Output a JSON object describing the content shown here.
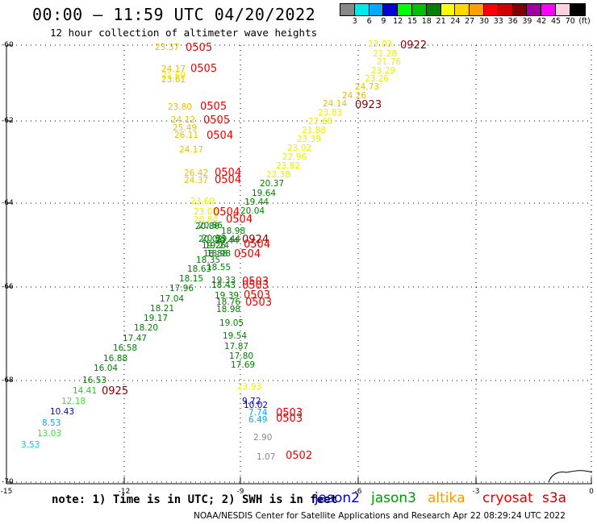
{
  "header": {
    "title": "00:00 — 11:59 UTC 04/20/2022",
    "subtitle": "12 hour collection of altimeter wave heights"
  },
  "colorbar": {
    "labels": [
      "3",
      "6",
      "9",
      "12",
      "15",
      "18",
      "21",
      "24",
      "27",
      "30",
      "33",
      "36",
      "39",
      "42",
      "45",
      "70",
      "(ft)"
    ],
    "colors": [
      "#888888",
      "#00e8e8",
      "#00a8ff",
      "#0000d8",
      "#00ff00",
      "#00c000",
      "#008000",
      "#ffff00",
      "#ffd800",
      "#ffa000",
      "#ff0000",
      "#d00000",
      "#800000",
      "#a000a0",
      "#ff00ff",
      "#ffd0e0",
      "#000000"
    ]
  },
  "axes": {
    "y_ticks": [
      "-60",
      "-62",
      "-64",
      "-66",
      "-68",
      "-70"
    ],
    "x_ticks": [
      "-15",
      "-12",
      "-9",
      "-6",
      "-3",
      "0"
    ]
  },
  "wave_heights": [
    {
      "v": "23.03",
      "c": "#eeee00"
    },
    {
      "v": "21.28",
      "c": "#eeee00"
    },
    {
      "v": "21.76",
      "c": "#eeee00"
    },
    {
      "v": "23.29",
      "c": "#eeee00"
    },
    {
      "v": "23.26",
      "c": "#eeee00"
    },
    {
      "v": "24.73",
      "c": "#e8c000"
    },
    {
      "v": "24.26",
      "c": "#e8c000"
    },
    {
      "v": "24.14",
      "c": "#e8c000"
    },
    {
      "v": "23.83",
      "c": "#eeee00"
    },
    {
      "v": "22.60",
      "c": "#eeee00"
    },
    {
      "v": "21.88",
      "c": "#eeee00"
    },
    {
      "v": "23.39",
      "c": "#eeee00"
    },
    {
      "v": "23.02",
      "c": "#eeee00"
    },
    {
      "v": "22.96",
      "c": "#eeee00"
    },
    {
      "v": "23.82",
      "c": "#eeee00"
    },
    {
      "v": "22.38",
      "c": "#eeee00"
    },
    {
      "v": "20.37",
      "c": "#008000"
    },
    {
      "v": "19.64",
      "c": "#008000"
    },
    {
      "v": "19.44",
      "c": "#008000"
    },
    {
      "v": "20.04",
      "c": "#008000"
    },
    {
      "v": "18.98",
      "c": "#008000"
    },
    {
      "v": "20.86",
      "c": "#008000"
    },
    {
      "v": "20.02",
      "c": "#008000"
    },
    {
      "v": "19.44",
      "c": "#008000"
    },
    {
      "v": "19.24",
      "c": "#008000"
    },
    {
      "v": "18.98",
      "c": "#008000"
    },
    {
      "v": "18.35",
      "c": "#008000"
    },
    {
      "v": "18.55",
      "c": "#008000"
    },
    {
      "v": "18.63",
      "c": "#008000"
    },
    {
      "v": "18.15",
      "c": "#008000"
    },
    {
      "v": "17.96",
      "c": "#008000"
    },
    {
      "v": "17.04",
      "c": "#008000"
    },
    {
      "v": "18.21",
      "c": "#008000"
    },
    {
      "v": "19.17",
      "c": "#008000"
    },
    {
      "v": "18.20",
      "c": "#008000"
    },
    {
      "v": "17.47",
      "c": "#008000"
    },
    {
      "v": "16.58",
      "c": "#008000"
    },
    {
      "v": "16.88",
      "c": "#008000"
    },
    {
      "v": "16.04",
      "c": "#008000"
    },
    {
      "v": "16.53",
      "c": "#008000"
    },
    {
      "v": "14.41",
      "c": "#22cc22"
    },
    {
      "v": "12.18",
      "c": "#44dd44"
    },
    {
      "v": "10.43",
      "c": "#0000cc"
    },
    {
      "v": "8.53",
      "c": "#00a8ff"
    },
    {
      "v": "13.03",
      "c": "#44dd44"
    },
    {
      "v": "3.53",
      "c": "#00d0d0"
    },
    {
      "v": "23.37",
      "c": "#e8c000"
    },
    {
      "v": "24.17",
      "c": "#e8c000"
    },
    {
      "v": "21.69",
      "c": "#eeee00"
    },
    {
      "v": "23.61",
      "c": "#e8c000"
    },
    {
      "v": "23.80",
      "c": "#e8c000"
    },
    {
      "v": "24.12",
      "c": "#e8c000"
    },
    {
      "v": "25.49",
      "c": "#e8c000"
    },
    {
      "v": "26.11",
      "c": "#e8c000"
    },
    {
      "v": "24.17",
      "c": "#e8c000"
    },
    {
      "v": "26.42",
      "c": "#e8c000"
    },
    {
      "v": "24.37",
      "c": "#e8c000"
    },
    {
      "v": "23.60",
      "c": "#eeee00"
    },
    {
      "v": "23.03",
      "c": "#eeee00"
    },
    {
      "v": "20.84",
      "c": "#eeee00"
    },
    {
      "v": "20.86",
      "c": "#008000"
    },
    {
      "v": "20.93",
      "c": "#008000"
    },
    {
      "v": "20.44",
      "c": "#008000"
    },
    {
      "v": "19.26",
      "c": "#008000"
    },
    {
      "v": "18.88",
      "c": "#008000"
    },
    {
      "v": "19.33",
      "c": "#008000"
    },
    {
      "v": "18.43",
      "c": "#008000"
    },
    {
      "v": "19.39",
      "c": "#008000"
    },
    {
      "v": "18.76",
      "c": "#008000"
    },
    {
      "v": "18.98",
      "c": "#008000"
    },
    {
      "v": "19.05",
      "c": "#008000"
    },
    {
      "v": "19.54",
      "c": "#008000"
    },
    {
      "v": "17.87",
      "c": "#008000"
    },
    {
      "v": "17.80",
      "c": "#008000"
    },
    {
      "v": "17.69",
      "c": "#008000"
    },
    {
      "v": "23.93",
      "c": "#eeee00"
    },
    {
      "v": "9.72",
      "c": "#0000cc"
    },
    {
      "v": "10.02",
      "c": "#0000cc"
    },
    {
      "v": "7.74",
      "c": "#00a8ff"
    },
    {
      "v": "6.49",
      "c": "#00a8ff"
    },
    {
      "v": "2.90",
      "c": "#888888"
    },
    {
      "v": "1.07",
      "c": "#888888"
    }
  ],
  "time_markers": [
    {
      "t": "0922",
      "c": "#800000"
    },
    {
      "t": "0923",
      "c": "#800000"
    },
    {
      "t": "0924",
      "c": "#800000"
    },
    {
      "t": "0925",
      "c": "#800000"
    },
    {
      "t": "0505",
      "c": "#ee0000"
    },
    {
      "t": "0505",
      "c": "#ee0000"
    },
    {
      "t": "0505",
      "c": "#ee0000"
    },
    {
      "t": "0505",
      "c": "#ee0000"
    },
    {
      "t": "0504",
      "c": "#ee0000"
    },
    {
      "t": "0504",
      "c": "#ee0000"
    },
    {
      "t": "0504",
      "c": "#ee0000"
    },
    {
      "t": "0504",
      "c": "#ee0000"
    },
    {
      "t": "0504",
      "c": "#ee0000"
    },
    {
      "t": "0504",
      "c": "#ee0000"
    },
    {
      "t": "0504",
      "c": "#ee0000"
    },
    {
      "t": "0503",
      "c": "#ee0000"
    },
    {
      "t": "0503",
      "c": "#ee0000"
    },
    {
      "t": "0503",
      "c": "#ee0000"
    },
    {
      "t": "0503",
      "c": "#ee0000"
    },
    {
      "t": "0503",
      "c": "#ee0000"
    },
    {
      "t": "0503",
      "c": "#ee0000"
    },
    {
      "t": "0502",
      "c": "#ee0000"
    }
  ],
  "footer": {
    "note": "note: 1) Time is in UTC; 2) SWH is in feet",
    "legend": [
      {
        "name": "jason2",
        "color": "#0000ee"
      },
      {
        "name": "jason3",
        "color": "#009900"
      },
      {
        "name": "altika",
        "color": "#ff9900"
      },
      {
        "name": "cryosat",
        "color": "#ee0000"
      },
      {
        "name": "s3a",
        "color": "#cc0000"
      }
    ],
    "credit": "NOAA/NESDIS Center for Satellite Applications and Research    Apr 22 08:29:24 UTC 2022"
  }
}
